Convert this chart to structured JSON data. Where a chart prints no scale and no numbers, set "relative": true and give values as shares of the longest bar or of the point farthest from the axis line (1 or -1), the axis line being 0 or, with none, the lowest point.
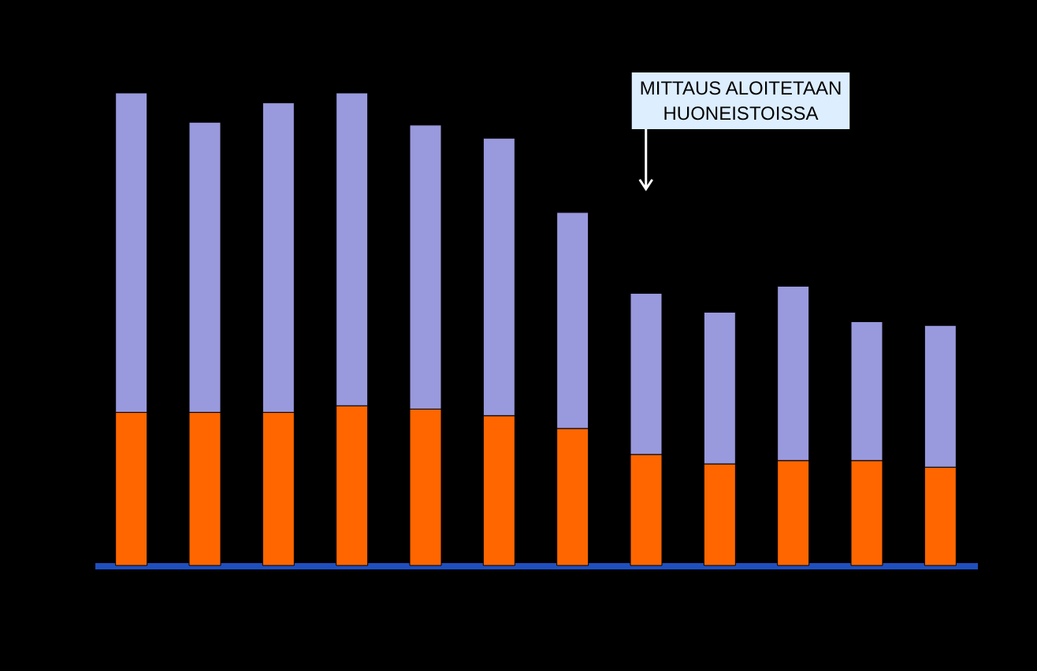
{
  "chart_data": {
    "type": "bar",
    "stacked": true,
    "relative": true,
    "categories": [
      null,
      null,
      null,
      null,
      null,
      null,
      null,
      null,
      null,
      null,
      null,
      null
    ],
    "series": [
      {
        "color": "#ff6600",
        "values": [
          0.324,
          0.324,
          0.324,
          0.338,
          0.331,
          0.317,
          0.29,
          0.235,
          0.215,
          0.222,
          0.222,
          0.208
        ]
      },
      {
        "color": "#9999dd",
        "values": [
          0.676,
          0.614,
          0.655,
          0.662,
          0.601,
          0.587,
          0.457,
          0.341,
          0.321,
          0.369,
          0.294,
          0.3
        ]
      }
    ],
    "annotations": [
      "MITTAUS ALOITETAAN HUONEISTOISSA"
    ]
  }
}
